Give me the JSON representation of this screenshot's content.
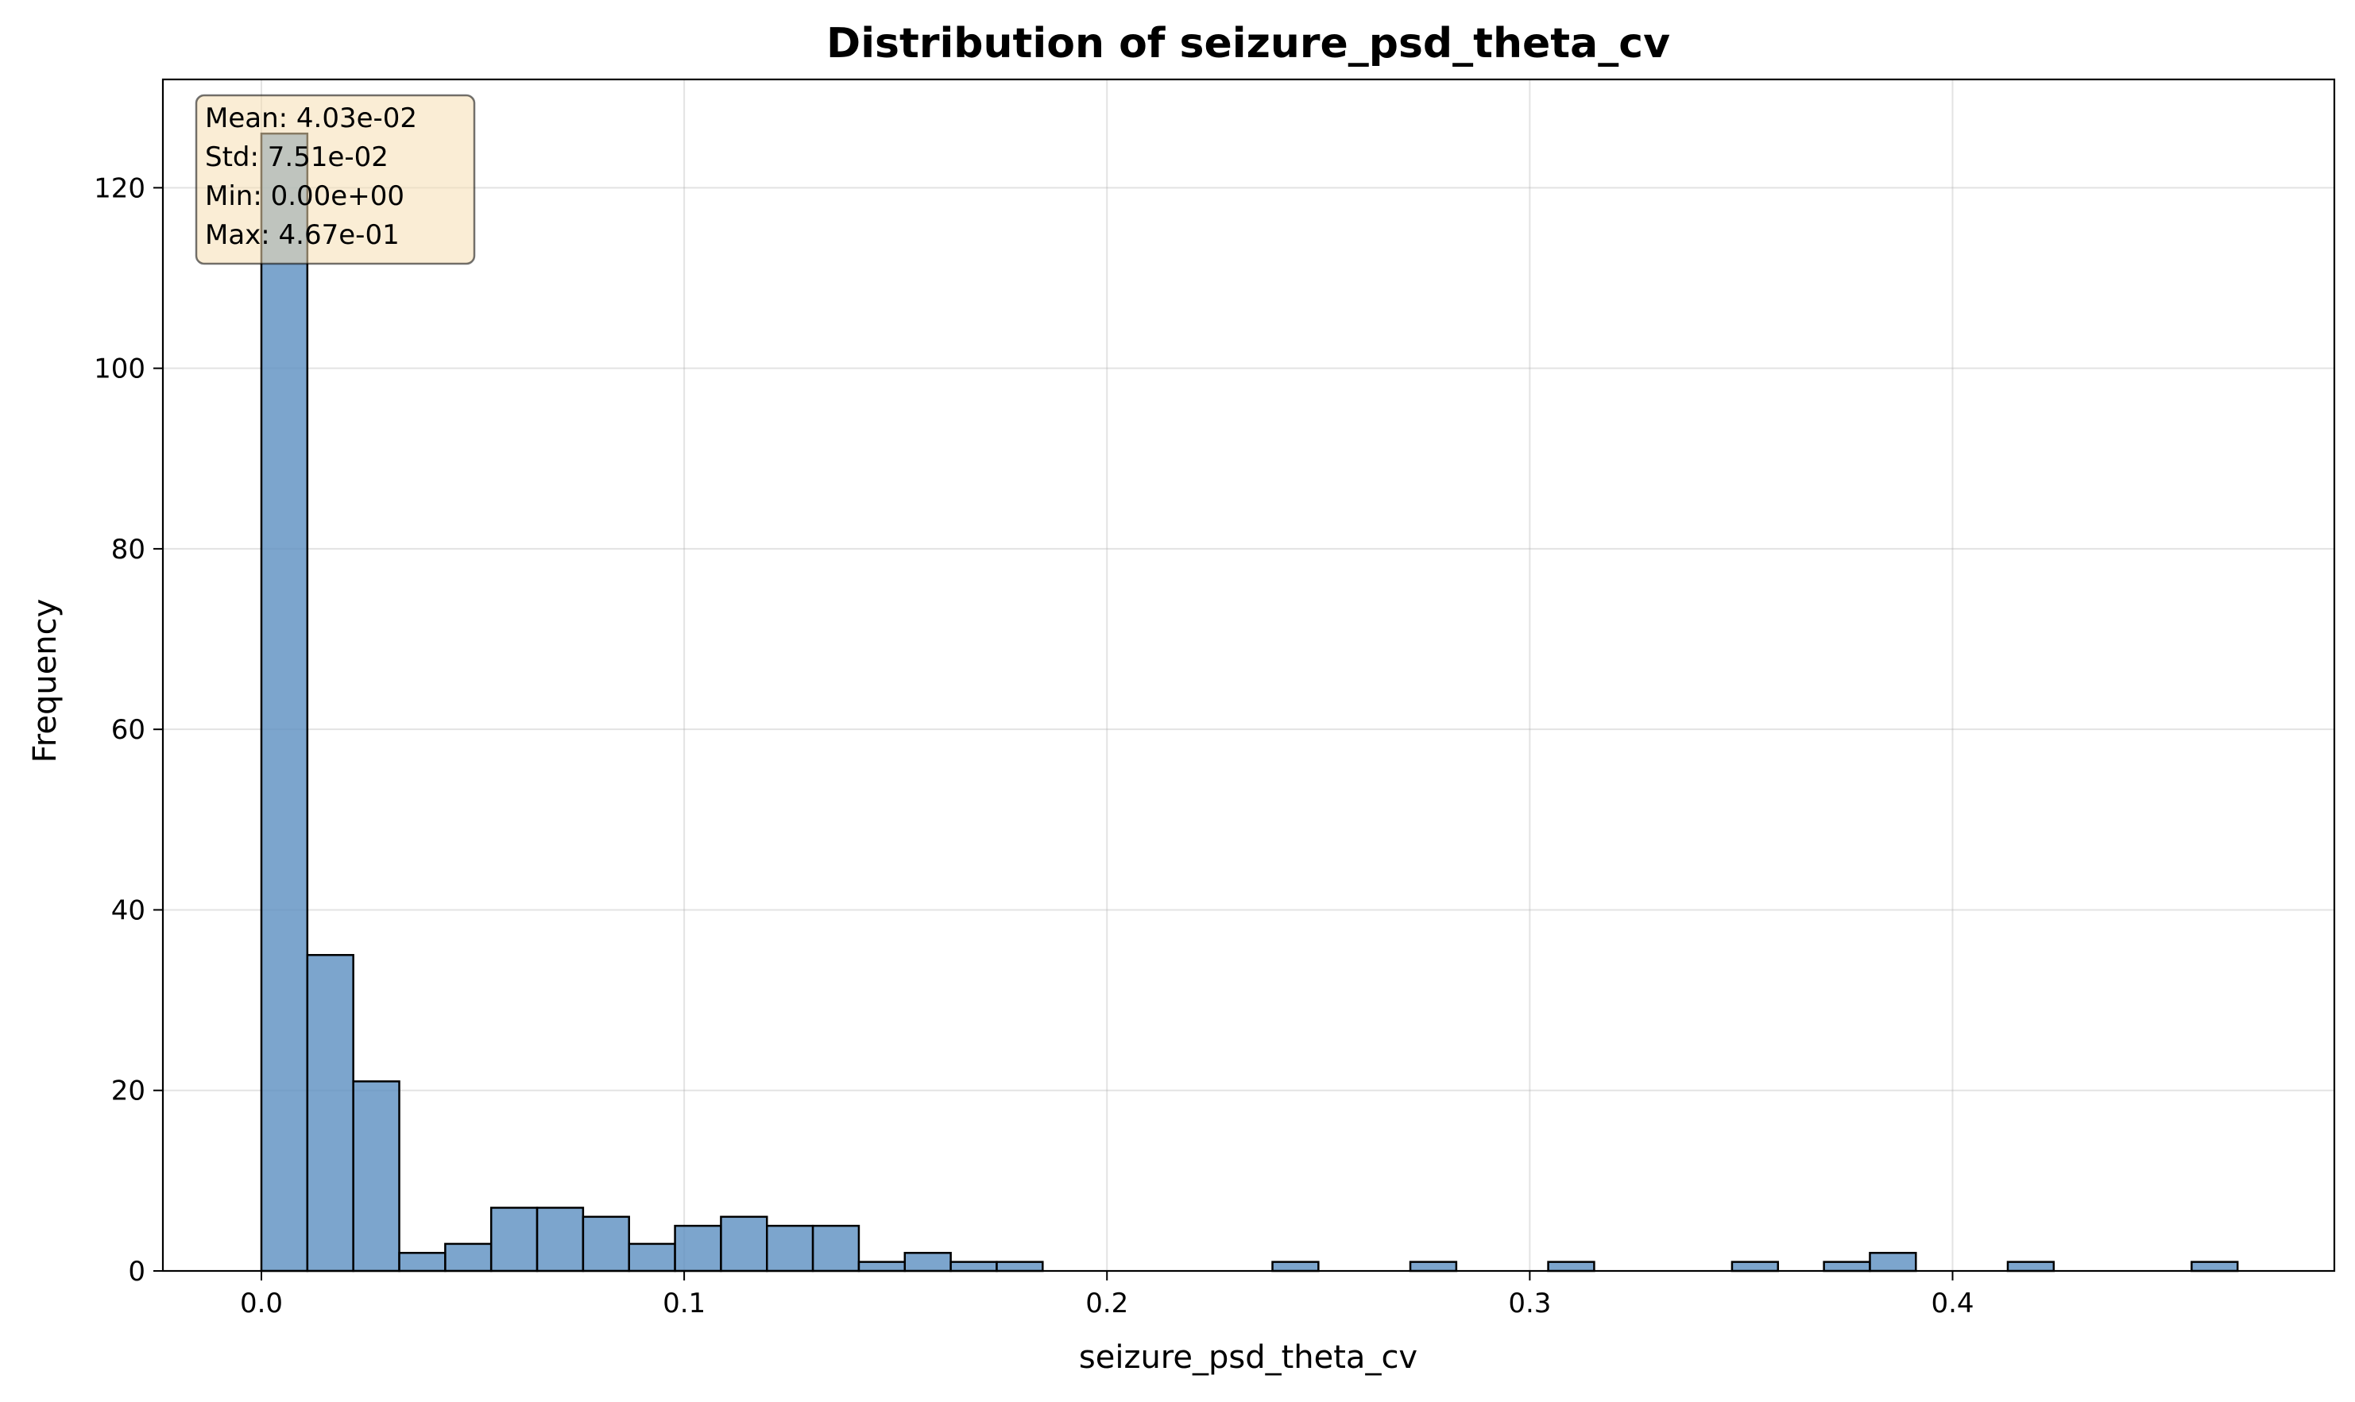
{
  "chart_data": {
    "type": "histogram",
    "title": "Distribution of seizure_psd_theta_cv",
    "xlabel": "seizure_psd_theta_cv",
    "ylabel": "Frequency",
    "xlim": [
      -0.0233,
      0.4903
    ],
    "ylim": [
      0,
      132
    ],
    "x_ticks": [
      0.0,
      0.1,
      0.2,
      0.3,
      0.4
    ],
    "x_tick_labels": [
      "0.0",
      "0.1",
      "0.2",
      "0.3",
      "0.4"
    ],
    "y_ticks": [
      0,
      20,
      40,
      60,
      80,
      100,
      120
    ],
    "y_tick_labels": [
      "0",
      "20",
      "40",
      "60",
      "80",
      "100",
      "120"
    ],
    "grid": true,
    "bin_start": 0.0,
    "bin_width": 0.01087,
    "counts": [
      126,
      35,
      21,
      2,
      3,
      7,
      7,
      6,
      3,
      5,
      6,
      5,
      5,
      1,
      2,
      1,
      1,
      0,
      0,
      0,
      0,
      0,
      1,
      0,
      0,
      1,
      0,
      0,
      1,
      0,
      0,
      0,
      1,
      0,
      1,
      2,
      0,
      0,
      1,
      0,
      0,
      0,
      1
    ],
    "bar_color": "#5b8fc0",
    "bar_edge_color": "#000000",
    "stats_box": {
      "lines": [
        "Mean: 4.03e-02",
        "Std: 7.51e-02",
        "Min: 0.00e+00",
        "Max: 4.67e-01"
      ],
      "background": "#f5deb3",
      "placement": "top-left"
    }
  }
}
